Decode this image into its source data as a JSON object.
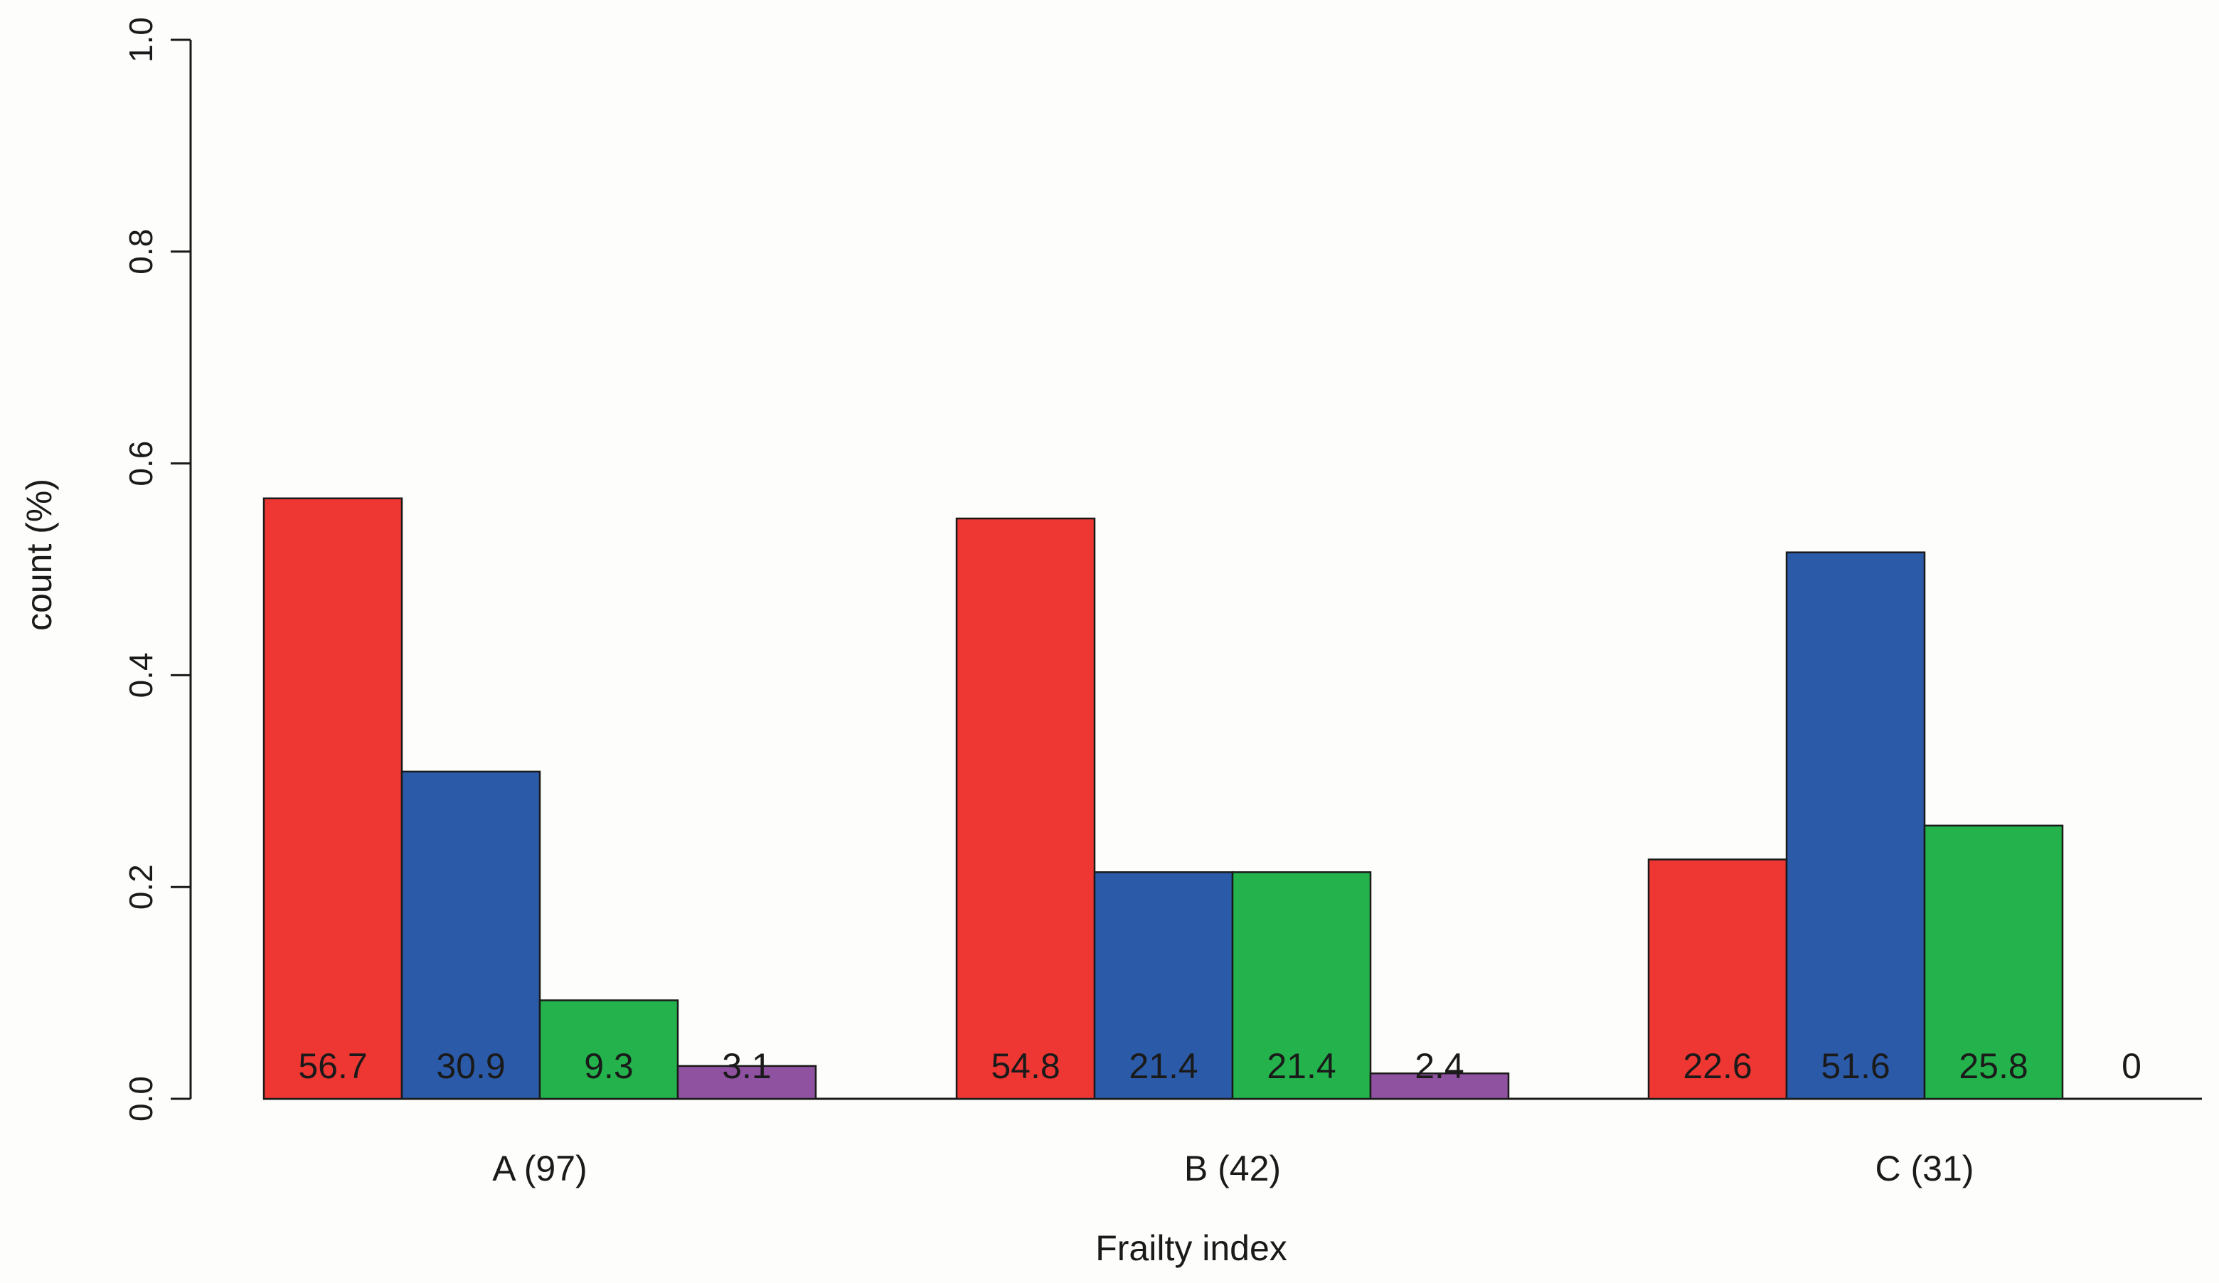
{
  "chart_data": {
    "type": "bar",
    "title": "",
    "xlabel": "Frailty index",
    "ylabel": "count (%)",
    "ylim": [
      0,
      1
    ],
    "yticks": [
      "0.0",
      "0.2",
      "0.4",
      "0.6",
      "0.8",
      "1.0"
    ],
    "grid": false,
    "legend": "none",
    "categories": [
      "A (97)",
      "B (42)",
      "C (31)"
    ],
    "colors": [
      "#ee3733",
      "#2b5ba8",
      "#23b24b",
      "#8f52a1"
    ],
    "series": [
      {
        "values": [
          0.567,
          0.548,
          0.226
        ]
      },
      {
        "values": [
          0.309,
          0.214,
          0.516
        ]
      },
      {
        "values": [
          0.093,
          0.214,
          0.258
        ]
      },
      {
        "values": [
          0.031,
          0.024,
          0.0
        ]
      }
    ],
    "data_labels": [
      [
        "56.7",
        "30.9",
        "9.3",
        "3.1"
      ],
      [
        "54.8",
        "21.4",
        "21.4",
        "2.4"
      ],
      [
        "22.6",
        "51.6",
        "25.8",
        "0"
      ]
    ]
  }
}
